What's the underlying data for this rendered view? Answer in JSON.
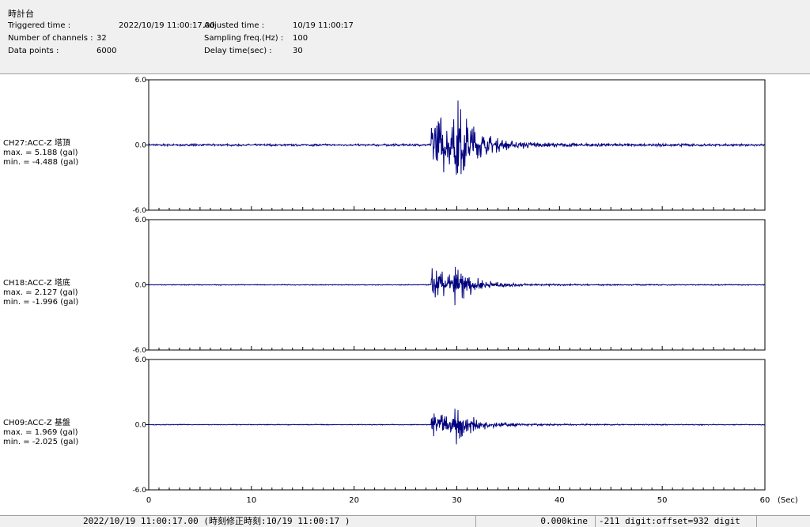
{
  "header": {
    "title": "時計台",
    "triggered_label": "Triggered time :",
    "triggered_value": "2022/10/19 11:00:17.00",
    "channels_label": "Number of channels :",
    "channels_value": "32",
    "datapoints_label": "Data points :",
    "datapoints_value": "6000",
    "adjusted_label": "Adjusted time :",
    "adjusted_value": "10/19 11:00:17",
    "sampling_label": "Sampling freq.(Hz) :",
    "sampling_value": "100",
    "delay_label": "Delay time(sec) :",
    "delay_value": "30"
  },
  "chart_data": {
    "type": "line",
    "xlim": [
      0,
      60
    ],
    "x_tick_labels": [
      "0",
      "10",
      "20",
      "30",
      "40",
      "50",
      "60"
    ],
    "x_unit": "(Sec)",
    "ylim": [
      -6.0,
      6.0
    ],
    "y_tick_labels": [
      "6.0",
      "0.0",
      "-6.0"
    ],
    "line_color": "#000080",
    "channels": [
      {
        "label": "CH27:ACC-Z 塔頂",
        "max_text": "max. = 5.188 (gal)",
        "min_text": "min. = -4.488 (gal)",
        "max": 5.188,
        "min": -4.488,
        "onset_sec": 27.5
      },
      {
        "label": "CH18:ACC-Z 塔底",
        "max_text": "max. = 2.127 (gal)",
        "min_text": "min. = -1.996 (gal)",
        "max": 2.127,
        "min": -1.996,
        "onset_sec": 27.5
      },
      {
        "label": "CH09:ACC-Z 基盤",
        "max_text": "max. = 1.969 (gal)",
        "min_text": "min. = -2.025 (gal)",
        "max": 1.969,
        "min": -2.025,
        "onset_sec": 27.5
      }
    ]
  },
  "statusbar": {
    "time_text": "2022/10/19 11:00:17.00  (時刻修正時刻:10/19 11:00:17  )",
    "kine_text": "0.000kine",
    "digit_text": "-211 digit:offset=932 digit"
  }
}
